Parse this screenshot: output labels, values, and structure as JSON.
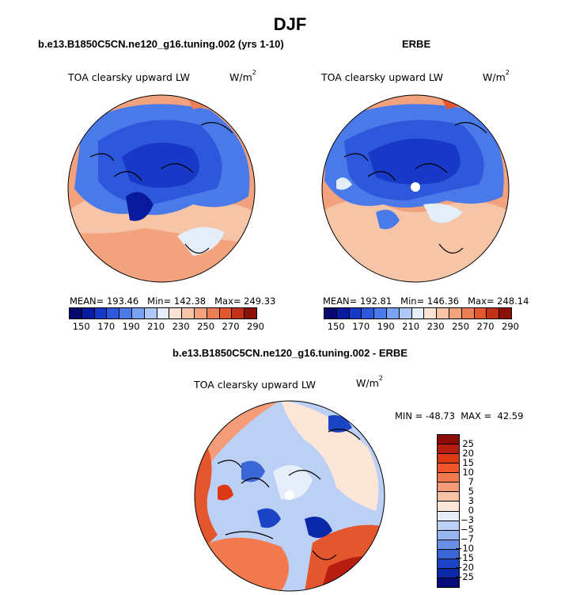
{
  "figure": {
    "season": "DJF"
  },
  "panels": [
    {
      "id": "model",
      "title": "b.e13.B1850C5CN.ne120_g16.tuning.002 (yrs 1-10)",
      "variable": "TOA clearsky upward LW",
      "units_base": "W/m",
      "units_exp": "2",
      "stats": {
        "mean_label": "MEAN=",
        "mean": "193.46",
        "min_label": "Min=",
        "min": "142.38",
        "max_label": "Max=",
        "max": "249.33"
      }
    },
    {
      "id": "obs",
      "title": "ERBE",
      "variable": "TOA clearsky upward LW",
      "units_base": "W/m",
      "units_exp": "2",
      "stats": {
        "mean_label": "MEAN=",
        "mean": "192.81",
        "min_label": "Min=",
        "min": "146.36",
        "max_label": "Max=",
        "max": "248.14"
      }
    },
    {
      "id": "diff",
      "title": "b.e13.B1850C5CN.ne120_g16.tuning.002 - ERBE",
      "variable": "TOA clearsky upward LW",
      "units_base": "W/m",
      "units_exp": "2",
      "stats_text": "MIN = -48.73  MAX =  42.59"
    }
  ],
  "colorbars": {
    "abs": {
      "colors": [
        "#08086e",
        "#0a1a9e",
        "#1838c8",
        "#2e58dc",
        "#4a7aea",
        "#7aa2f2",
        "#afc8f6",
        "#e4eefa",
        "#fbe4d6",
        "#f6c4a6",
        "#f2a27c",
        "#ec7e56",
        "#e4572e",
        "#c23018",
        "#8a1008"
      ],
      "tick_labels": [
        "150",
        "170",
        "190",
        "210",
        "230",
        "250",
        "270",
        "290"
      ]
    },
    "diff": {
      "colors": [
        "#8a0c08",
        "#b81e10",
        "#dc3814",
        "#f0562a",
        "#f27a4e",
        "#f49c78",
        "#f6c2a6",
        "#fbe6d8",
        "#e6eefa",
        "#bcd0f6",
        "#96b4ee",
        "#6a90e6",
        "#3a66d6",
        "#1a44c4",
        "#0a28a8",
        "#050c78"
      ],
      "tick_labels": [
        "25",
        "20",
        "15",
        "10",
        "7",
        "5",
        "3",
        "0",
        "−3",
        "−5",
        "−7",
        "−10",
        "−15",
        "−20",
        "−25"
      ]
    }
  }
}
